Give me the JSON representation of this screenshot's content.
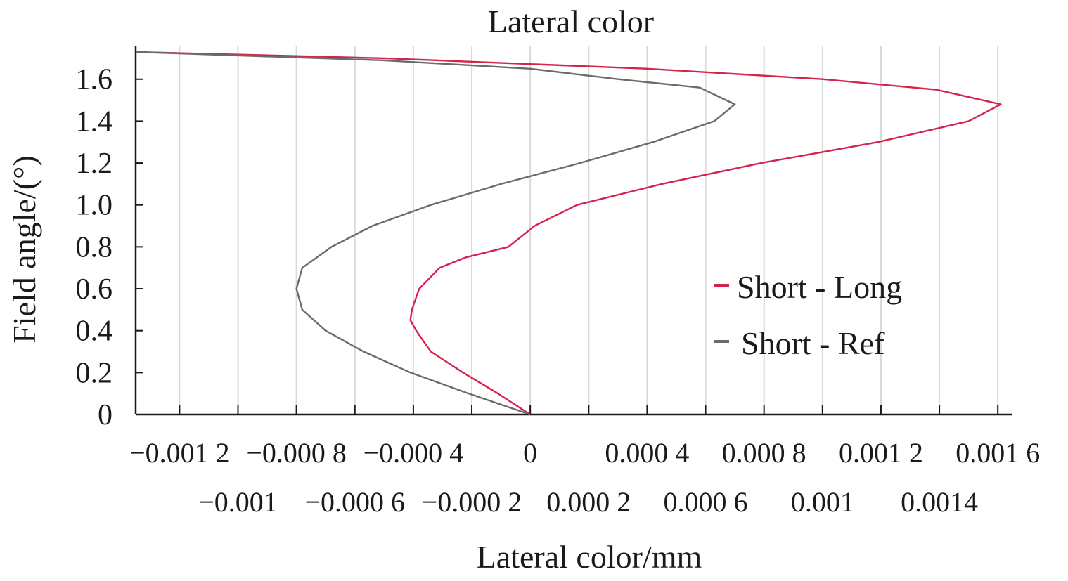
{
  "chart_data": {
    "type": "line",
    "title": "Lateral color",
    "xlabel": "Lateral color/mm",
    "ylabel": "Field angle/(°)",
    "xlim": [
      -0.00135,
      0.00165
    ],
    "ylim": [
      0,
      1.75
    ],
    "grid": {
      "x": true,
      "y": false
    },
    "legend_position": "right",
    "x_ticks": [
      {
        "value": -0.0012,
        "label": "−0.001 2",
        "row": 1
      },
      {
        "value": -0.001,
        "label": "−0.001",
        "row": 2
      },
      {
        "value": -0.0008,
        "label": "−0.000 8",
        "row": 1
      },
      {
        "value": -0.0006,
        "label": "−0.000 6",
        "row": 2
      },
      {
        "value": -0.0004,
        "label": "−0.000 4",
        "row": 1
      },
      {
        "value": -0.0002,
        "label": "−0.000 2",
        "row": 2
      },
      {
        "value": 0.0,
        "label": "0",
        "row": 1
      },
      {
        "value": 0.0002,
        "label": "0.000 2",
        "row": 2
      },
      {
        "value": 0.0004,
        "label": "0.000 4",
        "row": 1
      },
      {
        "value": 0.0006,
        "label": "0.000 6",
        "row": 2
      },
      {
        "value": 0.0008,
        "label": "0.000 8",
        "row": 1
      },
      {
        "value": 0.001,
        "label": "0.001",
        "row": 2
      },
      {
        "value": 0.0012,
        "label": "0.001 2",
        "row": 1
      },
      {
        "value": 0.0014,
        "label": "0.0014",
        "row": 2
      },
      {
        "value": 0.0016,
        "label": "0.001 6",
        "row": 1
      }
    ],
    "y_ticks": [
      {
        "value": 0,
        "label": "0"
      },
      {
        "value": 0.2,
        "label": "0.2"
      },
      {
        "value": 0.4,
        "label": "0.4"
      },
      {
        "value": 0.6,
        "label": "0.6"
      },
      {
        "value": 0.8,
        "label": "0.8"
      },
      {
        "value": 1.0,
        "label": "1.0"
      },
      {
        "value": 1.2,
        "label": "1.2"
      },
      {
        "value": 1.4,
        "label": "1.4"
      },
      {
        "value": 1.6,
        "label": "1.6"
      }
    ],
    "series": [
      {
        "name": "Short - Long",
        "color": "#d4244e",
        "points": [
          [
            0.0,
            0.0
          ],
          [
            -0.00011,
            0.1
          ],
          [
            -0.00023,
            0.2
          ],
          [
            -0.00034,
            0.3
          ],
          [
            -0.00039,
            0.4
          ],
          [
            -0.00041,
            0.45
          ],
          [
            -0.000405,
            0.5
          ],
          [
            -0.00038,
            0.6
          ],
          [
            -0.00031,
            0.7
          ],
          [
            -0.00022,
            0.75
          ],
          [
            -7.5e-05,
            0.8
          ],
          [
            1.5e-05,
            0.9
          ],
          [
            0.00016,
            1.0
          ],
          [
            0.00045,
            1.1
          ],
          [
            0.00079,
            1.2
          ],
          [
            0.00119,
            1.3
          ],
          [
            0.0015,
            1.4
          ],
          [
            0.00161,
            1.48
          ],
          [
            0.00139,
            1.55
          ],
          [
            0.001,
            1.6
          ],
          [
            0.0004,
            1.65
          ],
          [
            -0.0005,
            1.7
          ],
          [
            -0.00135,
            1.73
          ]
        ]
      },
      {
        "name": "Short - Ref",
        "color": "#6b6b6b",
        "points": [
          [
            0.0,
            0.0
          ],
          [
            -0.00021,
            0.1
          ],
          [
            -0.00041,
            0.2
          ],
          [
            -0.00057,
            0.3
          ],
          [
            -0.0007,
            0.4
          ],
          [
            -0.00078,
            0.5
          ],
          [
            -0.0008,
            0.6
          ],
          [
            -0.00078,
            0.7
          ],
          [
            -0.00068,
            0.8
          ],
          [
            -0.00054,
            0.9
          ],
          [
            -0.00034,
            1.0
          ],
          [
            -0.0001,
            1.1
          ],
          [
            0.00017,
            1.2
          ],
          [
            0.00042,
            1.3
          ],
          [
            0.00063,
            1.4
          ],
          [
            0.0007,
            1.48
          ],
          [
            0.00058,
            1.56
          ],
          [
            0.0003,
            1.6
          ],
          [
            0.0,
            1.65
          ],
          [
            -0.0005,
            1.69
          ],
          [
            -0.00135,
            1.73
          ]
        ]
      }
    ]
  }
}
